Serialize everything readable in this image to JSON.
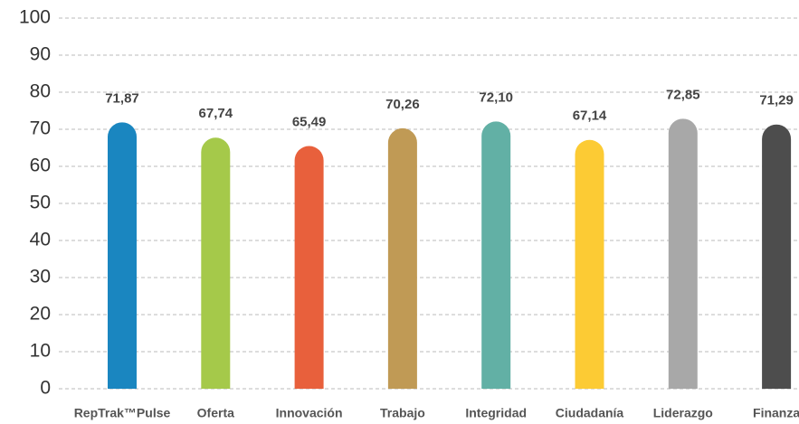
{
  "chart_data": {
    "type": "bar",
    "categories": [
      "RepTrak™Pulse",
      "Oferta",
      "Innovación",
      "Trabajo",
      "Integridad",
      "Ciudadanía",
      "Liderazgo",
      "Finanza"
    ],
    "values": [
      71.87,
      67.74,
      65.49,
      70.26,
      72.1,
      67.14,
      72.85,
      71.29
    ],
    "value_labels": [
      "71,87",
      "67,74",
      "65,49",
      "70,26",
      "72,10",
      "67,14",
      "72,85",
      "71,29"
    ],
    "colors": [
      "#1a86c0",
      "#a5c94a",
      "#e8603c",
      "#c09a55",
      "#62b0a5",
      "#fccb34",
      "#a8a8a8",
      "#4d4d4d"
    ],
    "ylim": [
      0,
      100
    ],
    "yticks": [
      0,
      10,
      20,
      30,
      40,
      50,
      60,
      70,
      80,
      90,
      100
    ],
    "grid": true
  }
}
